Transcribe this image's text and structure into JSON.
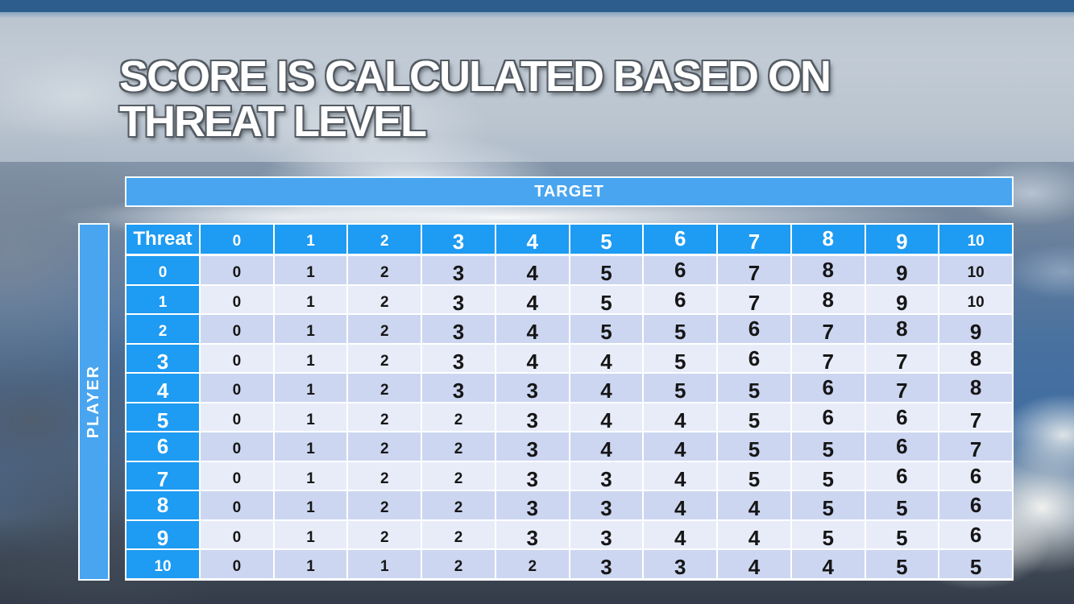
{
  "slide": {
    "title_line1": "SCORE IS CALCULATED BASED ON",
    "title_line2": "THREAT LEVEL"
  },
  "table": {
    "target_label": "TARGET",
    "player_label": "PLAYER",
    "corner_label": "Threat",
    "column_headers": [
      "0",
      "1",
      "2",
      "3",
      "4",
      "5",
      "6",
      "7",
      "8",
      "9",
      "10"
    ],
    "row_headers": [
      "0",
      "1",
      "2",
      "3",
      "4",
      "5",
      "6",
      "7",
      "8",
      "9",
      "10"
    ],
    "rows": [
      [
        0,
        1,
        2,
        3,
        4,
        5,
        6,
        7,
        8,
        9,
        10
      ],
      [
        0,
        1,
        2,
        3,
        4,
        5,
        6,
        7,
        8,
        9,
        10
      ],
      [
        0,
        1,
        2,
        3,
        4,
        5,
        5,
        6,
        7,
        8,
        9
      ],
      [
        0,
        1,
        2,
        3,
        4,
        4,
        5,
        6,
        7,
        7,
        8
      ],
      [
        0,
        1,
        2,
        3,
        3,
        4,
        5,
        5,
        6,
        7,
        8
      ],
      [
        0,
        1,
        2,
        2,
        3,
        4,
        4,
        5,
        6,
        6,
        7
      ],
      [
        0,
        1,
        2,
        2,
        3,
        4,
        4,
        5,
        5,
        6,
        7
      ],
      [
        0,
        1,
        2,
        2,
        3,
        3,
        4,
        5,
        5,
        6,
        6
      ],
      [
        0,
        1,
        2,
        2,
        3,
        3,
        4,
        4,
        5,
        5,
        6
      ],
      [
        0,
        1,
        2,
        2,
        3,
        3,
        4,
        4,
        5,
        5,
        6
      ],
      [
        0,
        1,
        1,
        2,
        2,
        3,
        3,
        4,
        4,
        5,
        5
      ]
    ]
  },
  "colors": {
    "header_blue": "#1e9bf2",
    "bar_blue": "#49a5ef",
    "row_even": "#ccd6f1",
    "row_odd": "#e8ecf9"
  }
}
